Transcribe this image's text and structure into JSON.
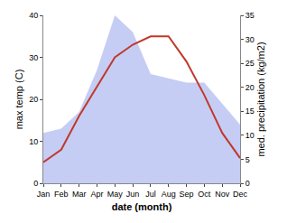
{
  "chart_data": {
    "type": "line",
    "xlabel": "date (month)",
    "ylabel": "max temp (C)",
    "y2label": "med. precipitation (kg/m2)",
    "categories": [
      "Jan",
      "Feb",
      "Mar",
      "Apr",
      "May",
      "Jun",
      "Jul",
      "Aug",
      "Sep",
      "Oct",
      "Nov",
      "Dec"
    ],
    "series": [
      {
        "type": "area",
        "color": "#c5cdf5",
        "values": [
          12,
          13,
          17,
          27,
          40,
          36,
          26,
          25,
          24,
          24,
          19,
          14
        ]
      },
      {
        "type": "line",
        "color": "#c0392b",
        "values": [
          5,
          8,
          16,
          23,
          30,
          33,
          35,
          35,
          29,
          21,
          12,
          6
        ]
      }
    ],
    "ylim": [
      0,
      40
    ],
    "yticks": [
      0,
      10,
      20,
      30,
      40
    ],
    "y2lim": [
      0,
      35
    ],
    "y2ticks": [
      0,
      5,
      10,
      15,
      20,
      25,
      30,
      35
    ],
    "grid": false
  }
}
